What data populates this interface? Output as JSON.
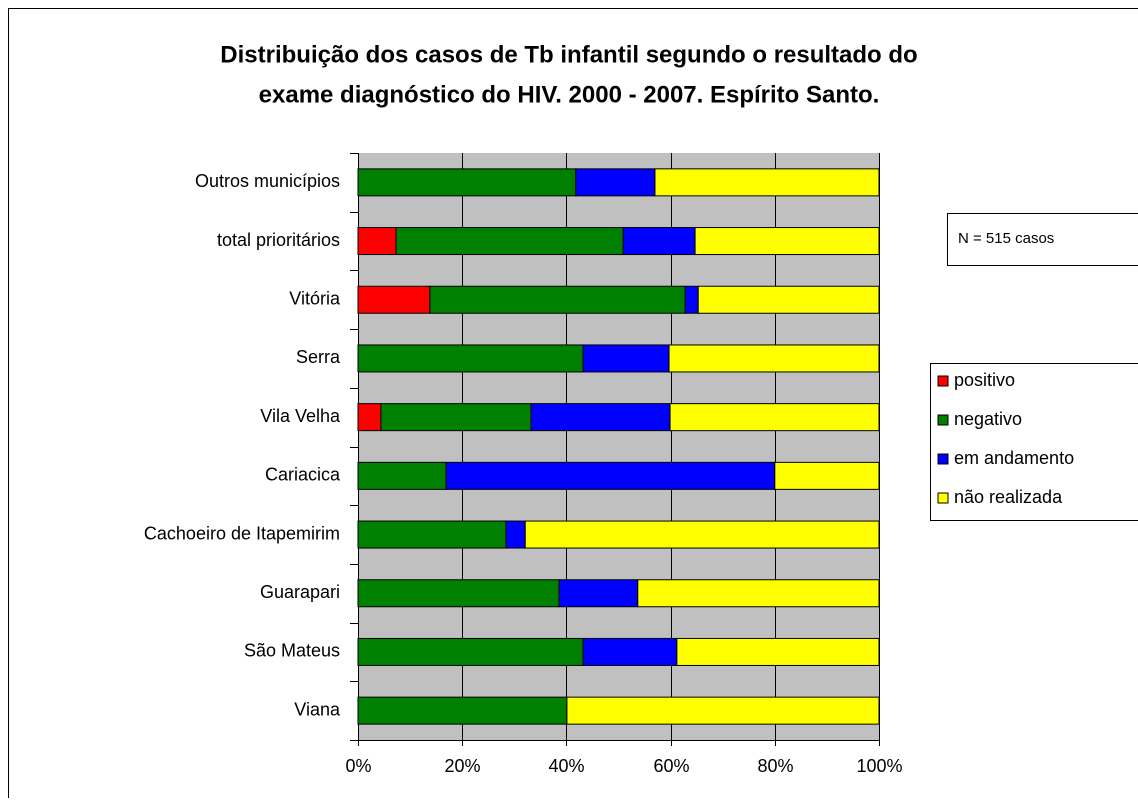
{
  "chart_data": {
    "type": "stacked_barh",
    "title": [
      "Distribuição dos casos de Tb infantil segundo o resultado do",
      "exame diagnóstico do HIV. 2000 - 2007. Espírito Santo."
    ],
    "annotation": "N = 515 casos",
    "categories": [
      "Outros municípios",
      "total prioritários",
      "Vitória",
      "Serra",
      "Vila Velha",
      "Cariacica",
      "Cachoeiro de Itapemirim",
      "Guarapari",
      "São Mateus",
      "Viana"
    ],
    "series": [
      {
        "name": "positivo",
        "color": "#ff0000",
        "values": [
          0,
          7.3,
          13.8,
          0,
          4.4,
          0,
          0,
          0,
          0,
          0
        ]
      },
      {
        "name": "negativo",
        "color": "#008000",
        "values": [
          41.8,
          43.6,
          49.0,
          43.2,
          28.8,
          16.9,
          28.4,
          38.6,
          43.2,
          40.1
        ]
      },
      {
        "name": "em andamento",
        "color": "#0000ff",
        "values": [
          15.2,
          13.8,
          2.5,
          16.5,
          26.7,
          63.1,
          3.7,
          15.1,
          18.0,
          0
        ]
      },
      {
        "name": "não realizada",
        "color": "#ffff00",
        "values": [
          43.0,
          35.3,
          34.7,
          40.3,
          40.1,
          20.0,
          67.9,
          46.3,
          38.8,
          59.9
        ]
      }
    ],
    "xlim": [
      0,
      100
    ],
    "xticks": [
      {
        "value": 0,
        "label": "0%"
      },
      {
        "value": 20,
        "label": "20%"
      },
      {
        "value": 40,
        "label": "40%"
      },
      {
        "value": 60,
        "label": "60%"
      },
      {
        "value": 80,
        "label": "80%"
      },
      {
        "value": 100,
        "label": "100%"
      }
    ],
    "grid": true,
    "legend": "right",
    "plot_background": "#c0c0c0"
  }
}
